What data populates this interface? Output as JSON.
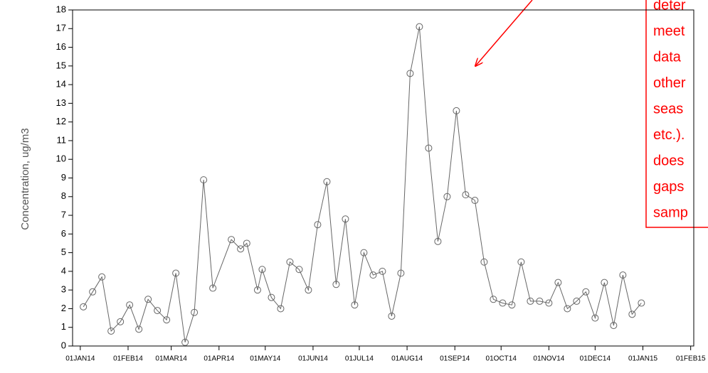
{
  "chart_data": {
    "type": "line",
    "y_label": "Concentration, ug/m3",
    "annotation": [
      "deter",
      "meet",
      "data",
      "other",
      "seas",
      "etc.).",
      "does",
      "gaps",
      "samp"
    ],
    "x": [
      "2014-01-03",
      "2014-01-09",
      "2014-01-15",
      "2014-01-21",
      "2014-01-27",
      "2014-02-02",
      "2014-02-08",
      "2014-02-14",
      "2014-02-20",
      "2014-02-26",
      "2014-03-04",
      "2014-03-10",
      "2014-03-16",
      "2014-03-22",
      "2014-03-28",
      "2014-04-09",
      "2014-04-15",
      "2014-04-19",
      "2014-04-26",
      "2014-04-29",
      "2014-05-05",
      "2014-05-11",
      "2014-05-17",
      "2014-05-23",
      "2014-05-29",
      "2014-06-04",
      "2014-06-10",
      "2014-06-16",
      "2014-06-22",
      "2014-06-28",
      "2014-07-04",
      "2014-07-10",
      "2014-07-16",
      "2014-07-22",
      "2014-07-28",
      "2014-08-03",
      "2014-08-09",
      "2014-08-15",
      "2014-08-21",
      "2014-08-27",
      "2014-09-02",
      "2014-09-08",
      "2014-09-14",
      "2014-09-20",
      "2014-09-26",
      "2014-10-02",
      "2014-10-08",
      "2014-10-14",
      "2014-10-20",
      "2014-10-26",
      "2014-11-01",
      "2014-11-07",
      "2014-11-13",
      "2014-11-19",
      "2014-11-25",
      "2014-12-01",
      "2014-12-07",
      "2014-12-13",
      "2014-12-19",
      "2014-12-25",
      "2014-12-31"
    ],
    "series": [
      {
        "color": "#666666",
        "values": [
          2.1,
          2.9,
          3.7,
          0.8,
          1.3,
          2.2,
          0.9,
          2.5,
          1.9,
          1.4,
          3.9,
          0.2,
          1.8,
          8.9,
          3.1,
          5.7,
          5.2,
          5.5,
          3.0,
          4.1,
          2.6,
          2.0,
          4.5,
          4.1,
          3.0,
          6.5,
          8.8,
          3.3,
          6.8,
          2.2,
          5.0,
          3.8,
          4.0,
          1.6,
          3.9,
          14.6,
          17.1,
          10.6,
          5.6,
          8.0,
          12.6,
          8.1,
          7.8,
          4.5,
          2.5,
          2.3,
          2.2,
          4.5,
          2.4,
          2.4,
          2.3,
          3.4,
          2.0,
          2.4,
          2.9,
          1.5,
          3.4,
          1.1,
          3.8,
          1.7,
          2.3
        ]
      }
    ],
    "xlim": [
      "2013-12-27",
      "2015-02-03"
    ],
    "xticks": [
      {
        "value": "2014-01-01",
        "label": "01JAN14"
      },
      {
        "value": "2014-02-01",
        "label": "01FEB14"
      },
      {
        "value": "2014-03-01",
        "label": "01MAR14"
      },
      {
        "value": "2014-04-01",
        "label": "01APR14"
      },
      {
        "value": "2014-05-01",
        "label": "01MAY14"
      },
      {
        "value": "2014-06-01",
        "label": "01JUN14"
      },
      {
        "value": "2014-07-01",
        "label": "01JUL14"
      },
      {
        "value": "2014-08-01",
        "label": "01AUG14"
      },
      {
        "value": "2014-09-01",
        "label": "01SEP14"
      },
      {
        "value": "2014-10-01",
        "label": "01OCT14"
      },
      {
        "value": "2014-11-01",
        "label": "01NOV14"
      },
      {
        "value": "2014-12-01",
        "label": "01DEC14"
      },
      {
        "value": "2015-01-01",
        "label": "01JAN15"
      },
      {
        "value": "2015-02-01",
        "label": "01FEB15"
      }
    ],
    "ylim": [
      0,
      18
    ],
    "yticks": [
      0,
      1,
      2,
      3,
      4,
      5,
      6,
      7,
      8,
      9,
      10,
      11,
      12,
      13,
      14,
      15,
      16,
      17,
      18
    ],
    "grid": false
  }
}
